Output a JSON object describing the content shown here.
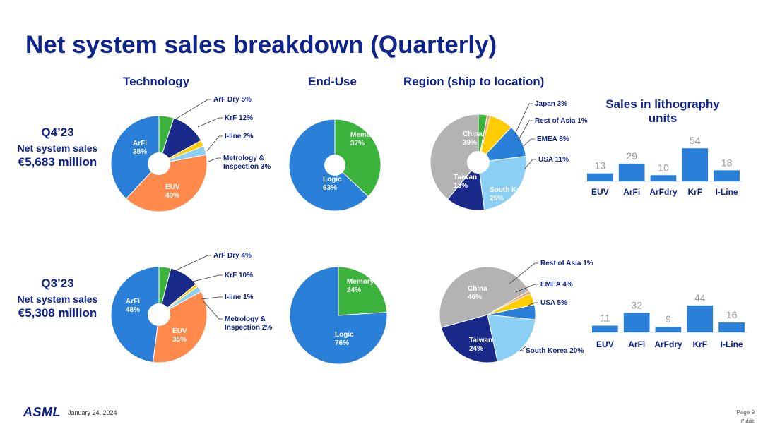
{
  "title": "Net system sales breakdown (Quarterly)",
  "columns": {
    "technology": "Technology",
    "enduse": "End-Use",
    "region": "Region (ship to location)"
  },
  "q4": {
    "quarter": "Q4’23",
    "net_label": "Net system sales",
    "value": "€5,683 million"
  },
  "q3": {
    "quarter": "Q3’23",
    "net_label": "Net system sales",
    "value": "€5,308 million"
  },
  "bar_title": "Sales in lithography units",
  "colors": {
    "blue": "#2a7fd9",
    "navy": "#1a2a8a",
    "orange": "#ff8a4c",
    "green": "#3cb33c",
    "yellow": "#ffcc00",
    "lightblue": "#8ccff5",
    "gray": "#b3b3b3",
    "salmon": "#f4a07a",
    "title": "#0f238c"
  },
  "chart_data": [
    {
      "id": "q4-technology",
      "type": "pie",
      "title": "Technology",
      "quarter": "Q4’23",
      "slices": [
        {
          "label": "ArF Dry",
          "value": 5,
          "text": "ArF Dry 5%",
          "color": "green"
        },
        {
          "label": "KrF",
          "value": 12,
          "text": "KrF 12%",
          "color": "navy"
        },
        {
          "label": "I-line",
          "value": 2,
          "text": "I-line 2%",
          "color": "yellow"
        },
        {
          "label": "Metrology & Inspection",
          "value": 3,
          "text": "Metrology & Inspection 3%",
          "line1": "Metrology &",
          "line2": "Inspection 3%",
          "color": "lightblue"
        },
        {
          "label": "EUV",
          "value": 40,
          "line1": "EUV",
          "line2": "40%",
          "color": "orange"
        },
        {
          "label": "ArFi",
          "value": 38,
          "line1": "ArFi",
          "line2": "38%",
          "color": "blue"
        }
      ]
    },
    {
      "id": "q4-enduse",
      "type": "pie",
      "title": "End-Use",
      "quarter": "Q4’23",
      "slices": [
        {
          "label": "Memory",
          "value": 37,
          "line1": "Memory",
          "line2": "37%",
          "color": "green"
        },
        {
          "label": "Logic",
          "value": 63,
          "line1": "Logic",
          "line2": "63%",
          "color": "blue"
        }
      ]
    },
    {
      "id": "q4-region",
      "type": "pie",
      "title": "Region (ship to location)",
      "quarter": "Q4’23",
      "slices": [
        {
          "label": "Japan",
          "value": 3,
          "text": "Japan 3%",
          "color": "green"
        },
        {
          "label": "Rest of Asia",
          "value": 1,
          "text": "Rest of Asia 1%",
          "color": "salmon"
        },
        {
          "label": "EMEA",
          "value": 8,
          "text": "EMEA 8%",
          "color": "yellow"
        },
        {
          "label": "USA",
          "value": 11,
          "text": "USA 11%",
          "color": "blue"
        },
        {
          "label": "South Korea",
          "value": 25,
          "line1": "South Korea",
          "line2": "25%",
          "color": "lightblue"
        },
        {
          "label": "Taiwan",
          "value": 13,
          "line1": "Taiwan",
          "line2": "13%",
          "color": "navy"
        },
        {
          "label": "China",
          "value": 39,
          "line1": "China",
          "line2": "39%",
          "color": "gray"
        }
      ]
    },
    {
      "id": "q3-technology",
      "type": "pie",
      "title": "Technology",
      "quarter": "Q3’23",
      "slices": [
        {
          "label": "ArF Dry",
          "value": 4,
          "text": "ArF Dry 4%",
          "color": "green"
        },
        {
          "label": "KrF",
          "value": 10,
          "text": "KrF 10%",
          "color": "navy"
        },
        {
          "label": "I-line",
          "value": 1,
          "text": "I-line 1%",
          "color": "yellow"
        },
        {
          "label": "Metrology & Inspection",
          "value": 2,
          "text": "Metrology & Inspection 2%",
          "line1": "Metrology &",
          "line2": "Inspection 2%",
          "color": "lightblue"
        },
        {
          "label": "EUV",
          "value": 35,
          "line1": "EUV",
          "line2": "35%",
          "color": "orange"
        },
        {
          "label": "ArFi",
          "value": 48,
          "line1": "ArFi",
          "line2": "48%",
          "color": "blue"
        }
      ]
    },
    {
      "id": "q3-enduse",
      "type": "pie",
      "title": "End-Use",
      "quarter": "Q3’23",
      "slices": [
        {
          "label": "Memory",
          "value": 24,
          "line1": "Memory",
          "line2": "24%",
          "color": "green"
        },
        {
          "label": "Logic",
          "value": 76,
          "line1": "Logic",
          "line2": "76%",
          "color": "blue"
        }
      ]
    },
    {
      "id": "q3-region",
      "type": "pie",
      "title": "Region (ship to location)",
      "quarter": "Q3’23",
      "slices": [
        {
          "label": "Rest of Asia",
          "value": 1,
          "text": "Rest of Asia 1%",
          "color": "salmon"
        },
        {
          "label": "EMEA",
          "value": 4,
          "text": "EMEA 4%",
          "color": "yellow"
        },
        {
          "label": "USA",
          "value": 5,
          "text": "USA 5%",
          "color": "blue"
        },
        {
          "label": "South Korea",
          "value": 20,
          "text": "South Korea 20%",
          "color": "lightblue"
        },
        {
          "label": "Taiwan",
          "value": 24,
          "line1": "Taiwan",
          "line2": "24%",
          "color": "navy"
        },
        {
          "label": "China",
          "value": 46,
          "line1": "China",
          "line2": "46%",
          "color": "gray"
        }
      ]
    },
    {
      "id": "q4-units",
      "type": "bar",
      "title": "Sales in lithography units",
      "quarter": "Q4’23",
      "categories": [
        "EUV",
        "ArFi",
        "ArFdry",
        "KrF",
        "I-Line"
      ],
      "values": [
        13,
        29,
        10,
        54,
        18
      ],
      "ylim": [
        0,
        60
      ]
    },
    {
      "id": "q3-units",
      "type": "bar",
      "title": "Sales in lithography units",
      "quarter": "Q3’23",
      "categories": [
        "EUV",
        "ArFi",
        "ArFdry",
        "KrF",
        "I-Line"
      ],
      "values": [
        11,
        32,
        9,
        44,
        16
      ],
      "ylim": [
        0,
        60
      ]
    }
  ],
  "footer": {
    "logo": "ASML",
    "date": "January 24, 2024",
    "page": "Page 9",
    "classification": "Public"
  }
}
